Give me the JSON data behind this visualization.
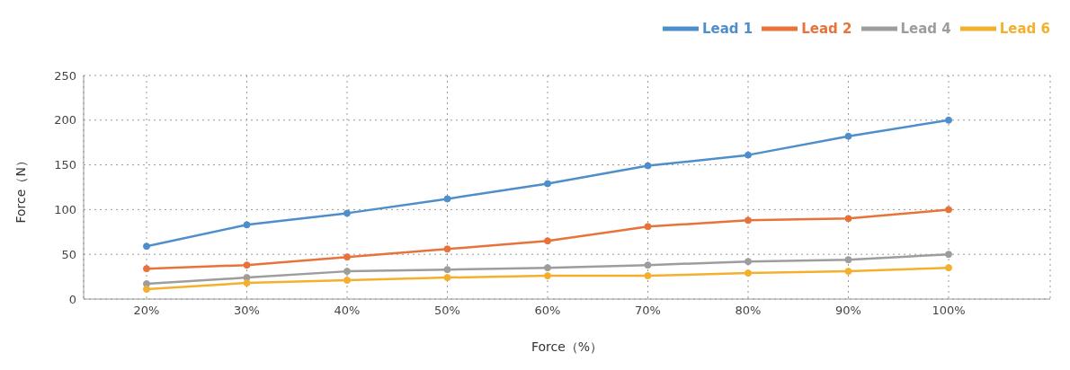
{
  "chart_data": {
    "type": "line",
    "xlabel": "Force（%）",
    "ylabel": "Force（N）",
    "categories": [
      "20%",
      "30%",
      "40%",
      "50%",
      "60%",
      "70%",
      "80%",
      "90%",
      "100%"
    ],
    "series": [
      {
        "name": "Lead 1",
        "color": "#4e8fcb",
        "values": [
          59,
          83,
          96,
          112,
          129,
          149,
          161,
          182,
          200
        ]
      },
      {
        "name": "Lead 2",
        "color": "#e7733a",
        "values": [
          34,
          38,
          47,
          56,
          65,
          81,
          88,
          90,
          100
        ]
      },
      {
        "name": "Lead 4",
        "color": "#9d9d9d",
        "values": [
          17,
          24,
          31,
          33,
          35,
          38,
          42,
          44,
          50
        ]
      },
      {
        "name": "Lead 6",
        "color": "#f4b02d",
        "values": [
          11,
          18,
          21,
          24,
          26,
          26,
          29,
          31,
          35
        ]
      }
    ],
    "ylim": [
      0,
      250
    ],
    "yticks": [
      0,
      50,
      100,
      150,
      200,
      250
    ],
    "grid": true,
    "legend": "top right",
    "marker": "circle",
    "line_style": "solid"
  }
}
